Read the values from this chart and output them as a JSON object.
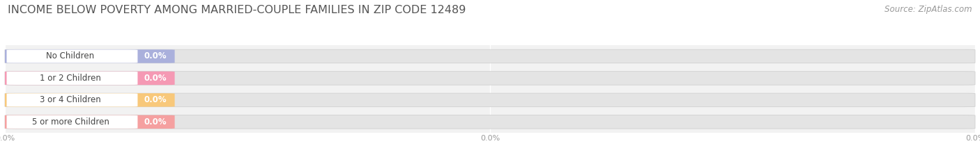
{
  "title": "INCOME BELOW POVERTY AMONG MARRIED-COUPLE FAMILIES IN ZIP CODE 12489",
  "source": "Source: ZipAtlas.com",
  "categories": [
    "No Children",
    "1 or 2 Children",
    "3 or 4 Children",
    "5 or more Children"
  ],
  "values": [
    0.0,
    0.0,
    0.0,
    0.0
  ],
  "bar_colors": [
    "#aab0dc",
    "#f599b4",
    "#f8c87a",
    "#f5a0a0"
  ],
  "bar_edge_colors": [
    "#9090c8",
    "#e07898",
    "#e8a850",
    "#e08888"
  ],
  "white_pill_color": "#ffffff",
  "background_color": "#ffffff",
  "plot_bg_color": "#f2f2f2",
  "bar_bg_color": "#e4e4e4",
  "title_fontsize": 11.5,
  "label_fontsize": 8.5,
  "value_fontsize": 8.5,
  "source_fontsize": 8.5,
  "xtick_labels": [
    "0.0%",
    "0.0%",
    "0.0%"
  ],
  "xtick_positions": [
    0.0,
    0.5,
    1.0
  ]
}
